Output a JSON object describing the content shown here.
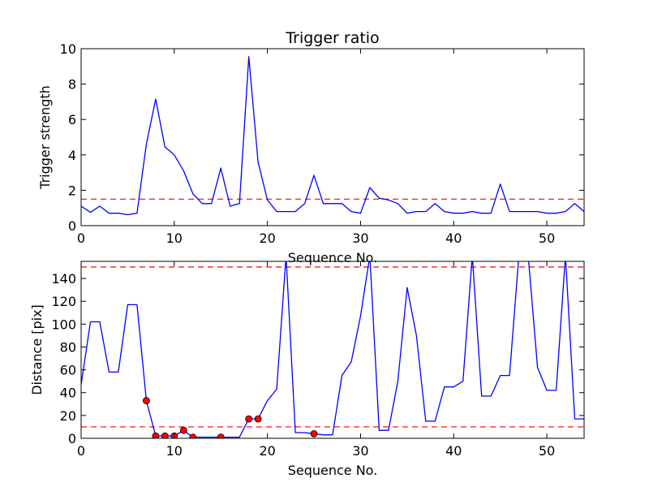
{
  "chart_data": [
    {
      "type": "line",
      "title": "Trigger ratio",
      "xlabel": "Sequence No.",
      "ylabel": "Trigger strength",
      "xlim": [
        0,
        54
      ],
      "ylim": [
        0,
        10
      ],
      "xticks": [
        0,
        10,
        20,
        30,
        40,
        50
      ],
      "yticks": [
        0,
        2,
        4,
        6,
        8,
        10
      ],
      "grid": false,
      "series": [
        {
          "color": "#0000ff",
          "style": "solid",
          "x": [
            0,
            1,
            2,
            3,
            4,
            5,
            6,
            7,
            8,
            9,
            10,
            11,
            12,
            13,
            14,
            15,
            16,
            17,
            18,
            19,
            20,
            21,
            22,
            23,
            24,
            25,
            26,
            27,
            28,
            29,
            30,
            31,
            32,
            33,
            34,
            35,
            36,
            37,
            38,
            39,
            40,
            41,
            42,
            43,
            44,
            45,
            46,
            47,
            48,
            49,
            50,
            51,
            52,
            53,
            54
          ],
          "y": [
            1.1,
            0.75,
            1.1,
            0.7,
            0.7,
            0.62,
            0.7,
            4.6,
            7.15,
            4.45,
            4.0,
            3.1,
            1.8,
            1.25,
            1.25,
            3.25,
            1.1,
            1.25,
            9.55,
            3.6,
            1.45,
            0.8,
            0.8,
            0.8,
            1.25,
            2.85,
            1.25,
            1.25,
            1.25,
            0.8,
            0.7,
            2.15,
            1.55,
            1.45,
            1.25,
            0.7,
            0.8,
            0.8,
            1.25,
            0.8,
            0.7,
            0.7,
            0.8,
            0.7,
            0.7,
            2.35,
            0.8,
            0.8,
            0.8,
            0.8,
            0.7,
            0.7,
            0.8,
            1.25,
            0.8
          ]
        }
      ],
      "threshold_lines": [
        {
          "y": 1.5,
          "color": "#ff0000",
          "style": "dashed"
        }
      ]
    },
    {
      "type": "line",
      "title": "",
      "xlabel": "Sequence No.",
      "ylabel": "Distance [pix]",
      "xlim": [
        0,
        54
      ],
      "ylim": [
        0,
        155
      ],
      "xticks": [
        0,
        10,
        20,
        30,
        40,
        50
      ],
      "yticks": [
        0,
        20,
        40,
        60,
        80,
        100,
        120,
        140
      ],
      "grid": false,
      "series": [
        {
          "color": "#0000ff",
          "style": "solid",
          "x": [
            0,
            1,
            2,
            3,
            4,
            5,
            6,
            7,
            8,
            9,
            10,
            11,
            12,
            13,
            14,
            15,
            16,
            17,
            18,
            19,
            20,
            21,
            22,
            23,
            24,
            25,
            26,
            27,
            28,
            29,
            30,
            31,
            32,
            33,
            34,
            35,
            36,
            37,
            38,
            39,
            40,
            41,
            42,
            43,
            44,
            45,
            46,
            47,
            48,
            49,
            50,
            51,
            52,
            53,
            54
          ],
          "y": [
            47,
            102,
            102,
            58,
            58,
            117,
            117,
            33,
            2,
            2,
            2,
            7,
            1,
            1,
            1,
            1,
            1,
            1,
            17,
            17,
            33,
            43,
            160,
            5,
            5,
            4,
            3,
            3,
            55,
            67,
            107,
            160,
            7,
            7,
            50,
            132,
            90,
            15,
            15,
            45,
            45,
            50,
            160,
            37,
            37,
            55,
            55,
            160,
            160,
            62,
            42,
            42,
            160,
            17,
            17
          ]
        },
        {
          "color": "#ff0000",
          "style": "markers",
          "x": [
            7,
            8,
            9,
            10,
            11,
            12,
            15,
            18,
            19,
            25
          ],
          "y": [
            33,
            2,
            2,
            2,
            7,
            1,
            1,
            17,
            17,
            4
          ]
        }
      ],
      "threshold_lines": [
        {
          "y": 10,
          "color": "#ff0000",
          "style": "dashed"
        },
        {
          "y": 150,
          "color": "#ff0000",
          "style": "dashed"
        }
      ]
    }
  ]
}
